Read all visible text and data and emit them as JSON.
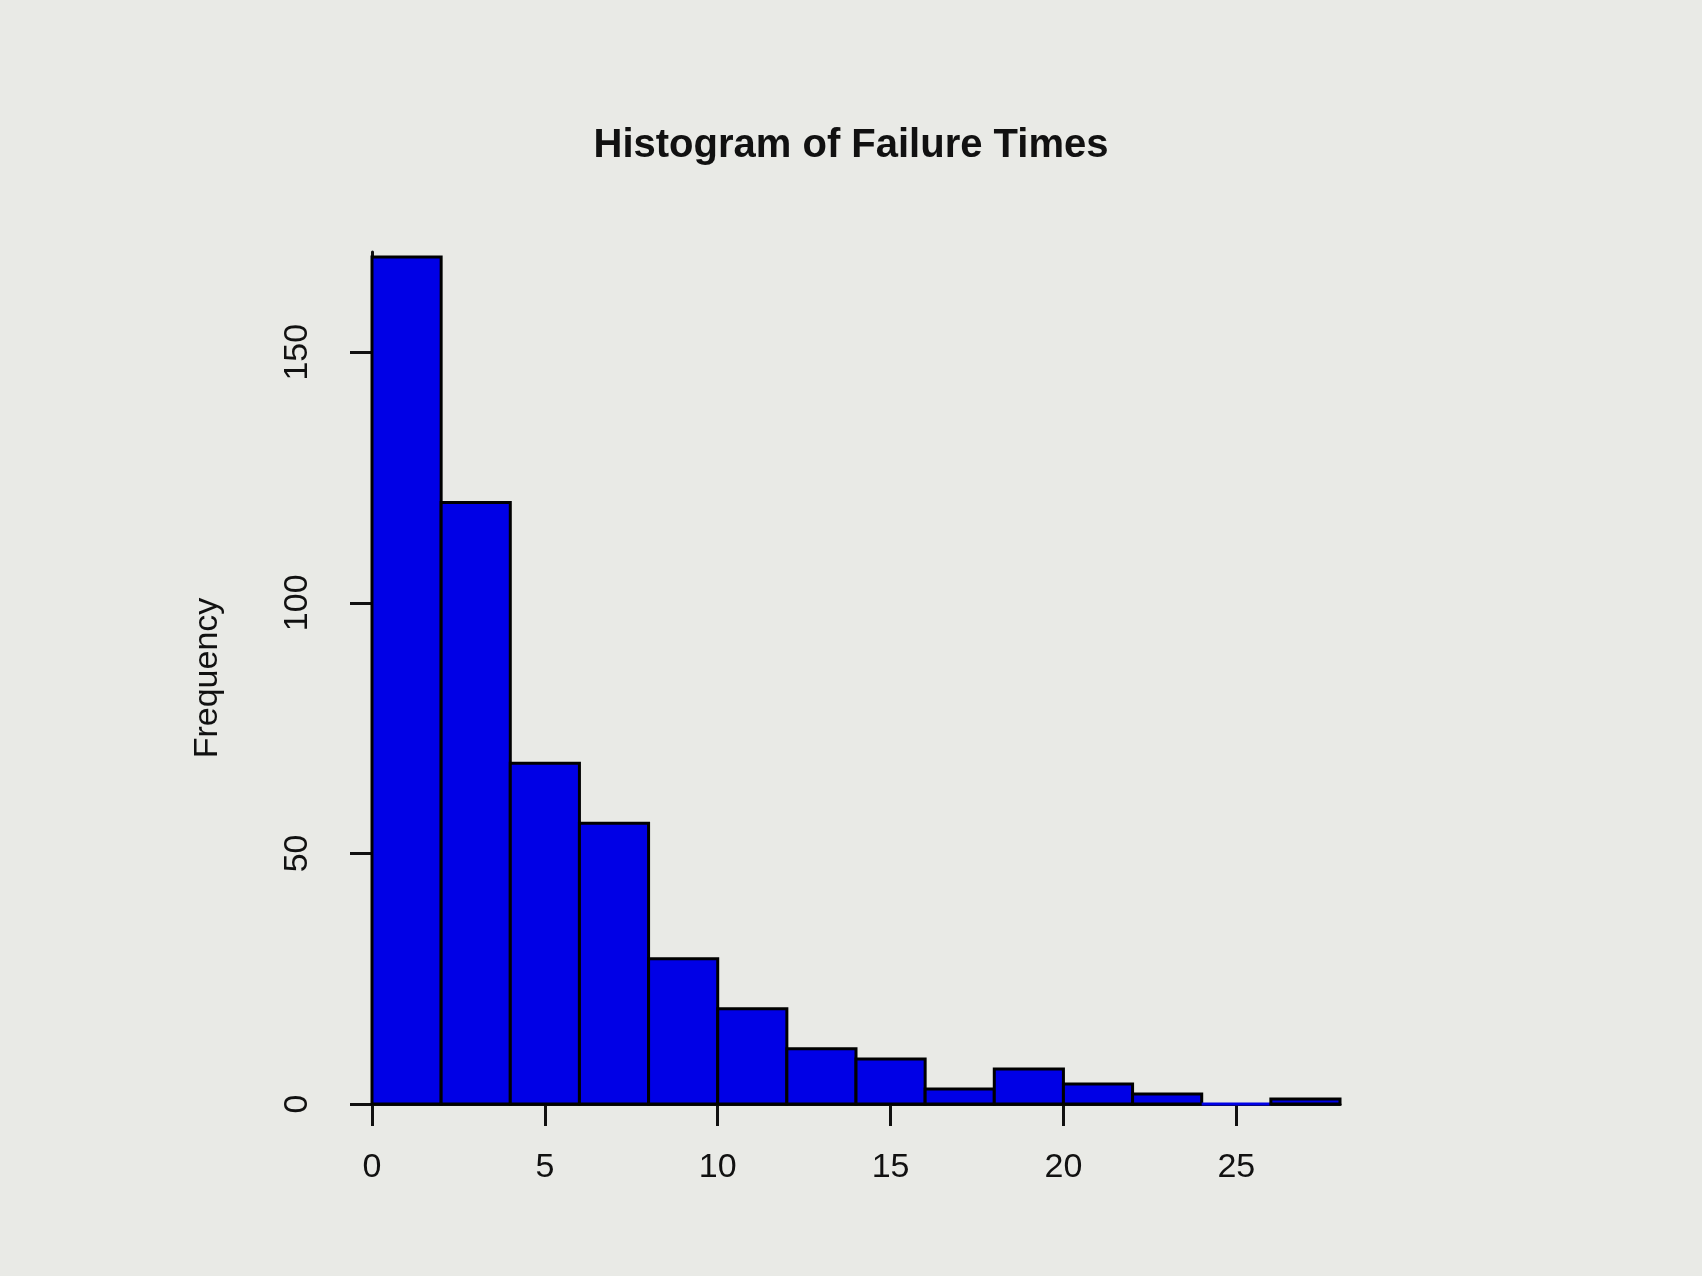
{
  "chart_data": {
    "type": "histogram",
    "title": "Histogram of Failure Times",
    "ylabel": "Frequency",
    "bins": [
      0,
      2,
      4,
      6,
      8,
      10,
      12,
      14,
      16,
      18,
      20,
      22,
      24,
      26,
      28
    ],
    "values": [
      169,
      120,
      68,
      56,
      29,
      19,
      11,
      9,
      3,
      7,
      4,
      2,
      0,
      1
    ],
    "color": "#0000e6",
    "xlim": [
      0,
      28
    ],
    "xticks": [
      0,
      5,
      10,
      15,
      20,
      25
    ],
    "ylim": [
      0,
      170
    ],
    "yticks": [
      0,
      50,
      100,
      150
    ]
  }
}
